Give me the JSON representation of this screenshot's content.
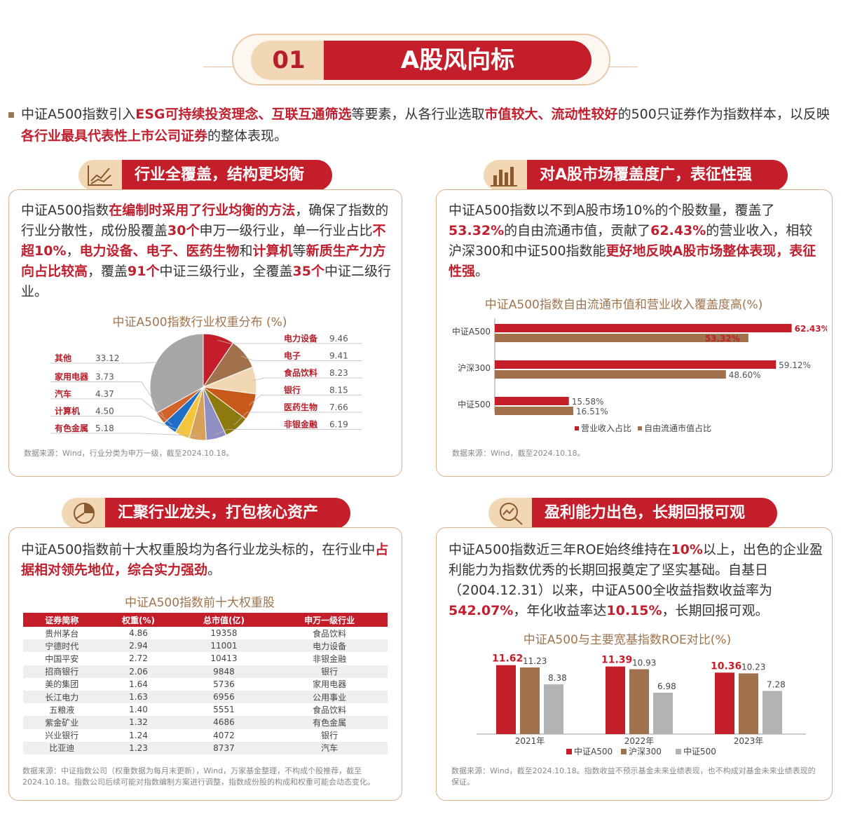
{
  "banner": {
    "number": "01",
    "title": "A股风向标"
  },
  "intro": [
    {
      "t": "中证A500指数引入"
    },
    {
      "t": "ESG可持续投资理念、互联互通筛选",
      "h": 1
    },
    {
      "t": "等要素，从各行业选取"
    },
    {
      "t": "市值较大、流动性较好",
      "h": 1
    },
    {
      "t": "的500只证券作为指数样本，以反映"
    },
    {
      "t": "各行业最具代表性上市公司证券",
      "h": 1
    },
    {
      "t": "的整体表现。"
    }
  ],
  "sections": {
    "s1": {
      "title": "行业全覆盖，结构更均衡",
      "icon": "line-chart-icon",
      "text": [
        {
          "t": "中证A500指数"
        },
        {
          "t": "在编制时采用了行业均衡的方法",
          "h": 1
        },
        {
          "t": "，确保了指数的行业分散性，成份股覆盖"
        },
        {
          "t": "30个",
          "h": 1
        },
        {
          "t": "申万一级行业，单一行业占比"
        },
        {
          "t": "不超10%",
          "h": 1
        },
        {
          "t": "，"
        },
        {
          "t": "电力设备、电子、医药生物",
          "h": 1
        },
        {
          "t": "和"
        },
        {
          "t": "计算机",
          "h": 1
        },
        {
          "t": "等"
        },
        {
          "t": "新质生产力方向占比较高",
          "h": 1
        },
        {
          "t": "，覆盖"
        },
        {
          "t": "91个",
          "h": 1
        },
        {
          "t": "中证三级行业，全覆盖"
        },
        {
          "t": "35个",
          "h": 1
        },
        {
          "t": "中证二级行业。"
        }
      ],
      "chart_title": "中证A500指数行业权重分布 (%)",
      "source": "数据来源：Wind，行业分类为申万一级，截至2024.10.18。"
    },
    "s2": {
      "title": "对A股市场覆盖度广，表征性强",
      "icon": "bar-chart-icon",
      "text": [
        {
          "t": "中证A500指数以不到A股市场10%的个股数量，覆盖了"
        },
        {
          "t": "53.32%",
          "h": 1
        },
        {
          "t": "的自由流通市值，贡献了"
        },
        {
          "t": "62.43%",
          "h": 1
        },
        {
          "t": "的营业收入，相较沪深300和中证500指数能"
        },
        {
          "t": "更好地反映A股市场整体表现，表征性强",
          "h": 1
        },
        {
          "t": "。"
        }
      ],
      "chart_title": "中证A500指数自由流通市值和营业收入覆盖度高(%)",
      "source": "数据来源：Wind，截至2024.10.18。"
    },
    "s3": {
      "title": "汇聚行业龙头，打包核心资产",
      "icon": "pie-chart-icon",
      "text": [
        {
          "t": "中证A500指数前十大权重股均为各行业龙头标的，在行业中"
        },
        {
          "t": "占据相对领先地位，综合实力强劲",
          "h": 1
        },
        {
          "t": "。"
        }
      ],
      "chart_title": "中证A500指数前十大权重股",
      "source": "数据来源：中证指数公司（权重数据为每月末更新），Wind，万家基金整理，不构成个股推荐，截至2024.10.18。指数公司后续可能对指数编制方案进行调整，指数成份股的构成和权重可能会动态变化。"
    },
    "s4": {
      "title": "盈利能力出色，长期回报可观",
      "icon": "magnifier-chart-icon",
      "text": [
        {
          "t": "中证A500指数近三年ROE始终维持在"
        },
        {
          "t": "10%",
          "h": 1
        },
        {
          "t": "以上，出色的企业盈利能力为指数优秀的长期回报奠定了坚实基础。自基日（2004.12.31）以来，中证A500全收益指数收益率为"
        },
        {
          "t": "542.07%",
          "h": 1
        },
        {
          "t": "，年化收益率达"
        },
        {
          "t": "10.15%",
          "h": 1
        },
        {
          "t": "，长期回报可观。"
        }
      ],
      "chart_title": "中证A500与主要宽基指数ROE对比(%)",
      "source": "数据来源：Wind，截至2024.10.18。指数收益不预示基金未来业绩表现，也不构成对基金未来业绩表现的保证。"
    }
  },
  "table": {
    "headers": [
      "证券简称",
      "权重(%)",
      "总市值(亿)",
      "申万一级行业"
    ],
    "rows": [
      [
        "贵州茅台",
        "4.86",
        "19358",
        "食品饮料"
      ],
      [
        "宁德时代",
        "2.94",
        "11001",
        "电力设备"
      ],
      [
        "中国平安",
        "2.72",
        "10413",
        "非银金融"
      ],
      [
        "招商银行",
        "2.06",
        "9848",
        "银行"
      ],
      [
        "美的集团",
        "1.64",
        "5736",
        "家用电器"
      ],
      [
        "长江电力",
        "1.63",
        "6956",
        "公用事业"
      ],
      [
        "五粮液",
        "1.40",
        "5551",
        "食品饮料"
      ],
      [
        "紫金矿业",
        "1.32",
        "4686",
        "有色金属"
      ],
      [
        "兴业银行",
        "1.24",
        "4072",
        "银行"
      ],
      [
        "比亚迪",
        "1.23",
        "8737",
        "汽车"
      ]
    ]
  },
  "chart_data": [
    {
      "type": "pie",
      "title": "中证A500指数行业权重分布 (%)",
      "slices": [
        {
          "label": "电力设备",
          "value": 9.46,
          "color": "#c41e2a"
        },
        {
          "label": "电子",
          "value": 9.41,
          "color": "#a0714a"
        },
        {
          "label": "食品饮料",
          "value": 8.23,
          "color": "#f2d7b4"
        },
        {
          "label": "银行",
          "value": 8.15,
          "color": "#c85a19"
        },
        {
          "label": "医药生物",
          "value": 7.66,
          "color": "#8c7a0f"
        },
        {
          "label": "非银金融",
          "value": 6.19,
          "color": "#8f8fc4"
        },
        {
          "label": "有色金属",
          "value": 5.18,
          "color": "#d9a05a"
        },
        {
          "label": "计算机",
          "value": 4.5,
          "color": "#f5c43d"
        },
        {
          "label": "汽车",
          "value": 4.37,
          "color": "#1f6ec8"
        },
        {
          "label": "家用电器",
          "value": 3.73,
          "color": "#d0622a"
        },
        {
          "label": "其他",
          "value": 33.12,
          "color": "#a6a6a6"
        }
      ]
    },
    {
      "type": "bar",
      "orientation": "horizontal",
      "title": "中证A500指数自由流通市值和营业收入覆盖度高(%)",
      "categories": [
        "中证A500",
        "沪深300",
        "中证500"
      ],
      "series": [
        {
          "name": "营业收入占比",
          "values": [
            62.43,
            59.12,
            15.58
          ],
          "color": "#c41e2a"
        },
        {
          "name": "自由流通市值占比",
          "values": [
            53.32,
            48.6,
            16.51
          ],
          "color": "#a0714a"
        }
      ],
      "value_labels": [
        [
          "62.43%",
          "59.12%",
          "15.58%"
        ],
        [
          "53.32%",
          "48.60%",
          "16.51%"
        ]
      ],
      "xlim": [
        0,
        70
      ]
    },
    {
      "type": "bar",
      "title": "中证A500与主要宽基指数ROE对比(%)",
      "categories": [
        "2021年",
        "2022年",
        "2023年"
      ],
      "series": [
        {
          "name": "中证A500",
          "values": [
            11.62,
            11.39,
            10.36
          ],
          "color": "#c41e2a"
        },
        {
          "name": "沪深300",
          "values": [
            11.23,
            10.93,
            10.23
          ],
          "color": "#a0714a"
        },
        {
          "name": "中证500",
          "values": [
            8.38,
            6.98,
            7.28
          ],
          "color": "#b3b3b3"
        }
      ],
      "ylim": [
        0,
        13
      ]
    }
  ]
}
